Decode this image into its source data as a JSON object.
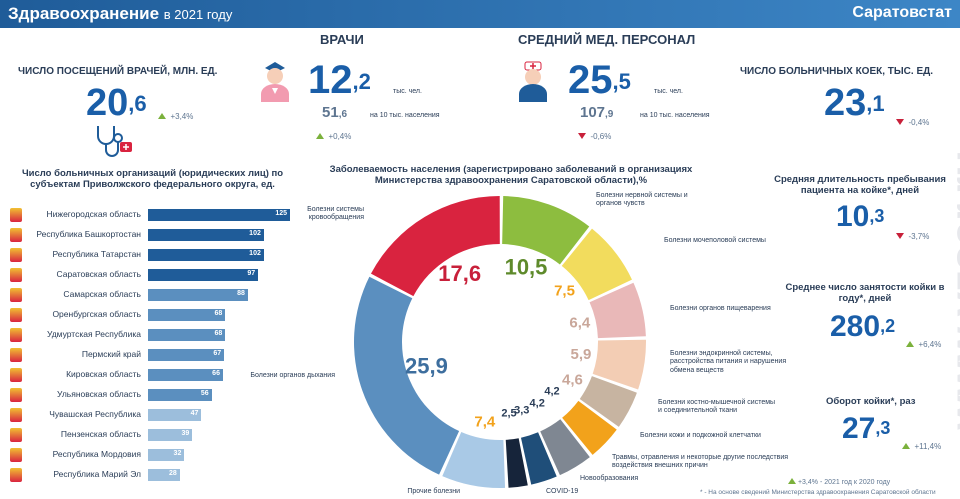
{
  "header": {
    "title": "Здравоохранение",
    "subtitle": "в 2021 году",
    "brand": "Саратовстат"
  },
  "visits": {
    "label": "ЧИСЛО ПОСЕЩЕНИЙ ВРАЧЕЙ, млн. ед.",
    "int": "20",
    "dec": ",6",
    "change": "+3,4%"
  },
  "doctors": {
    "label": "ВРАЧИ",
    "int": "12",
    "dec": ",2",
    "unit": "тыс. чел.",
    "per_int": "51",
    "per_dec": ",6",
    "per_unit": "на 10 тыс. населения",
    "change": "+0,4%"
  },
  "nurses": {
    "label": "СРЕДНИЙ МЕД. ПЕРСОНАЛ",
    "int": "25",
    "dec": ",5",
    "unit": "тыс. чел.",
    "per_int": "107",
    "per_dec": ",9",
    "per_unit": "на 10 тыс. населения",
    "change": "-0,6%"
  },
  "beds": {
    "label": "ЧИСЛО БОЛЬНИЧНЫХ КОЕК, тыс. ед.",
    "int": "23",
    "dec": ",1",
    "change": "-0,4%"
  },
  "stay": {
    "label": "Средняя длительность пребывания пациента на койке*, дней",
    "int": "10",
    "dec": ",3",
    "change": "-3,7%"
  },
  "occupancy": {
    "label": "Среднее число занятости койки в году*, дней",
    "int": "280",
    "dec": ",2",
    "change": "+6,4%"
  },
  "turnover": {
    "label": "Оборот койки*, раз",
    "int": "27",
    "dec": ",3",
    "change": "+11,4%"
  },
  "footnote": {
    "legend_pct": "+3,4%",
    "legend_text": "- 2021 год к 2020 году",
    "note": "* - На основе сведений Министерства здравоохранения Саратовской области"
  },
  "watermark": "www.vzsar.ru",
  "chart_data": [
    {
      "type": "bar",
      "title": "Число больничных организаций (юридических лиц) по субъектам Приволжского федерального округа, ед.",
      "categories": [
        "Нижегородская область",
        "Республика Башкортостан",
        "Республика Татарстан",
        "Саратовская область",
        "Самарская область",
        "Оренбургская область",
        "Удмуртская Республика",
        "Пермский край",
        "Кировская область",
        "Ульяновская область",
        "Чувашская Республика",
        "Пензенская область",
        "Республика Мордовия",
        "Республика Марий Эл"
      ],
      "values": [
        125,
        102,
        102,
        97,
        88,
        68,
        68,
        67,
        66,
        56,
        47,
        39,
        32,
        28
      ],
      "colors": [
        "#1f5c99",
        "#1f5c99",
        "#1f5c99",
        "#1f5c99",
        "#5b8fbf",
        "#5b8fbf",
        "#5b8fbf",
        "#5b8fbf",
        "#5b8fbf",
        "#5b8fbf",
        "#9cbedc",
        "#9cbedc",
        "#9cbedc",
        "#9cbedc"
      ]
    },
    {
      "type": "pie",
      "title": "Заболеваемость населения (зарегистрировано заболеваний в организациях Министерства здравоохранения Саратовской области),%",
      "slices": [
        {
          "label": "Болезни нервной системы и органов чувств",
          "value": 10.5,
          "text": "10,5",
          "color": "#8dbd3f"
        },
        {
          "label": "Болезни мочеполовой системы",
          "value": 7.5,
          "text": "7,5",
          "color": "#f2dc5d"
        },
        {
          "label": "Болезни органов пищеварения",
          "value": 6.4,
          "text": "6,4",
          "color": "#e9b8b8"
        },
        {
          "label": "Болезни эндокринной системы, расстройства питания и нарушения обмена веществ",
          "value": 5.9,
          "text": "5,9",
          "color": "#f3cdb4"
        },
        {
          "label": "Болезни костно-мышечной системы и соединительной ткани",
          "value": 4.6,
          "text": "4,6",
          "color": "#c7b4a1"
        },
        {
          "label": "Болезни кожи и подкожной клетчатки",
          "value": 4.2,
          "text": "4,2",
          "color": "#f2a21b"
        },
        {
          "label": "Травмы, отравления и некоторые другие последствия воздействия внешних причин",
          "value": 4.2,
          "text": "4,2",
          "color": "#7f8792"
        },
        {
          "label": "Новообразования",
          "value": 3.3,
          "text": "3,3",
          "color": "#1f4e79"
        },
        {
          "label": "COVID-19",
          "value": 2.5,
          "text": "2,5",
          "color": "#16243a"
        },
        {
          "label": "Прочие болезни",
          "value": 7.4,
          "text": "7,4",
          "color": "#a9c9e6"
        },
        {
          "label": "Болезни органов дыхания",
          "value": 25.9,
          "text": "25,9",
          "color": "#5b8fbf"
        },
        {
          "label": "Болезни системы кровообращения",
          "value": 17.6,
          "text": "17,6",
          "color": "#d9233f"
        }
      ]
    }
  ]
}
